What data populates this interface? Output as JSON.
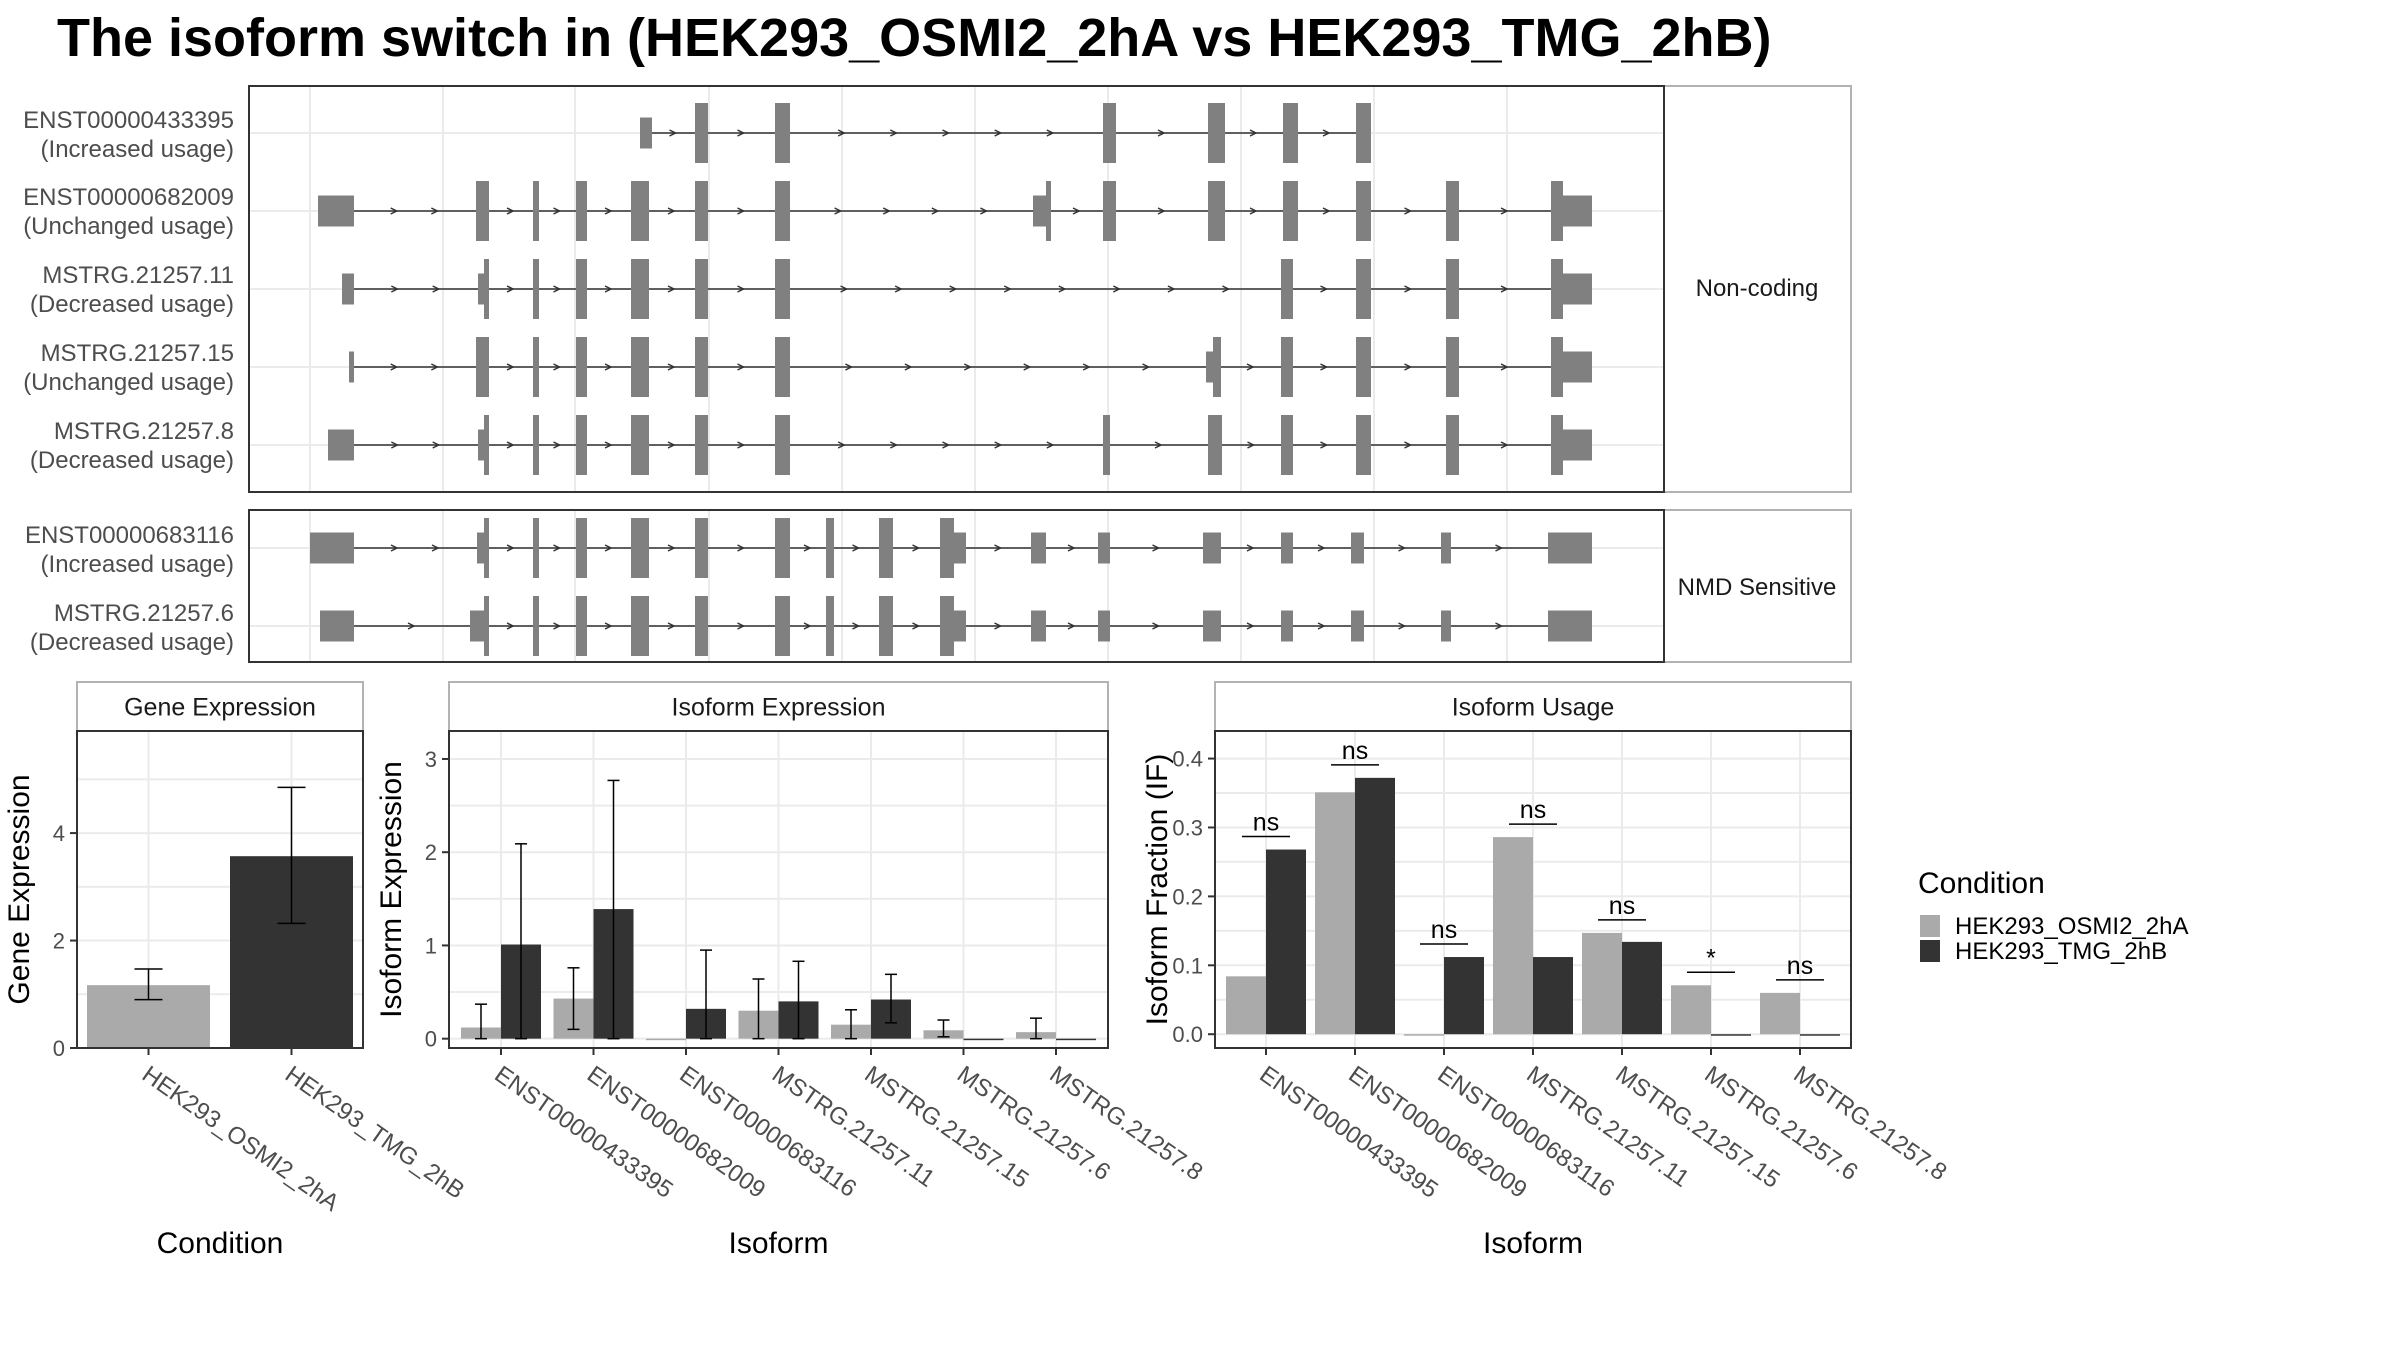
{
  "title": "The isoform switch in  (HEK293_OSMI2_2hA vs HEK293_TMG_2hB)",
  "colors": {
    "cond_a": "#aaaaaa",
    "cond_b": "#333333",
    "exon": "#808080",
    "grid": "#ebebeb",
    "panel_border": "#333333",
    "strip_border": "#b3b3b3"
  },
  "structure": {
    "groups": [
      {
        "name": "Non-coding",
        "transcripts": [
          {
            "id": "ENST00000433395",
            "usage": "(Increased usage)"
          },
          {
            "id": "ENST00000682009",
            "usage": "(Unchanged usage)"
          },
          {
            "id": "MSTRG.21257.11",
            "usage": "(Decreased usage)"
          },
          {
            "id": "MSTRG.21257.15",
            "usage": "(Unchanged usage)"
          },
          {
            "id": "MSTRG.21257.8",
            "usage": "(Decreased usage)"
          }
        ]
      },
      {
        "name": "NMD Sensitive",
        "transcripts": [
          {
            "id": "ENST00000683116",
            "usage": "(Increased usage)"
          },
          {
            "id": "MSTRG.21257.6",
            "usage": "(Decreased usage)"
          }
        ]
      }
    ]
  },
  "legend": {
    "title": "Condition",
    "items": [
      "HEK293_OSMI2_2hA",
      "HEK293_TMG_2hB"
    ]
  },
  "chart_data": [
    {
      "type": "bar",
      "title": "Gene Expression",
      "xlabel": "Condition",
      "ylabel": "Gene Expression",
      "ylim": [
        0,
        5.9
      ],
      "yticks": [
        "0",
        "2",
        "4"
      ],
      "categories": [
        "HEK293_OSMI2_2hA",
        "HEK293_TMG_2hB"
      ],
      "series": [
        {
          "name": "HEK293_OSMI2_2hA",
          "values": [
            1.17,
            null
          ],
          "err_low": [
            0.9,
            null
          ],
          "err_high": [
            1.47,
            null
          ]
        },
        {
          "name": "HEK293_TMG_2hB",
          "values": [
            null,
            3.57
          ],
          "err_low": [
            null,
            2.32
          ],
          "err_high": [
            null,
            4.85
          ]
        }
      ],
      "grid": true
    },
    {
      "type": "bar",
      "title": "Isoform Expression",
      "xlabel": "Isoform",
      "ylabel": "Isoform Expression",
      "ylim": [
        -0.1,
        3.3
      ],
      "yticks": [
        "0",
        "1",
        "2",
        "3"
      ],
      "categories": [
        "ENST00000433395",
        "ENST00000682009",
        "ENST00000683116",
        "MSTRG.21257.11",
        "MSTRG.21257.15",
        "MSTRG.21257.6",
        "MSTRG.21257.8"
      ],
      "series": [
        {
          "name": "HEK293_OSMI2_2hA",
          "values": [
            0.12,
            0.43,
            0.0,
            0.3,
            0.15,
            0.09,
            0.07
          ],
          "err_low": [
            0.0,
            0.1,
            0.0,
            0.0,
            0.0,
            0.02,
            0.0
          ],
          "err_high": [
            0.37,
            0.76,
            0.0,
            0.64,
            0.31,
            0.2,
            0.22
          ]
        },
        {
          "name": "HEK293_TMG_2hB",
          "values": [
            1.01,
            1.39,
            0.32,
            0.4,
            0.42,
            0.0,
            0.0
          ],
          "err_low": [
            0.0,
            0.0,
            0.0,
            0.0,
            0.17,
            0.0,
            0.0
          ],
          "err_high": [
            2.09,
            2.77,
            0.95,
            0.83,
            0.69,
            0.0,
            0.0
          ]
        }
      ],
      "grid": true
    },
    {
      "type": "bar",
      "title": "Isoform Usage",
      "xlabel": "Isoform",
      "ylabel": "Isoform Fraction (IF)",
      "ylim": [
        -0.02,
        0.44
      ],
      "yticks": [
        "0.0",
        "0.1",
        "0.2",
        "0.3",
        "0.4"
      ],
      "categories": [
        "ENST00000433395",
        "ENST00000682009",
        "ENST00000683116",
        "MSTRG.21257.11",
        "MSTRG.21257.15",
        "MSTRG.21257.6",
        "MSTRG.21257.8"
      ],
      "series": [
        {
          "name": "HEK293_OSMI2_2hA",
          "values": [
            0.084,
            0.351,
            0.0,
            0.286,
            0.147,
            0.071,
            0.06
          ]
        },
        {
          "name": "HEK293_TMG_2hB",
          "values": [
            0.268,
            0.372,
            0.112,
            0.112,
            0.134,
            0.0,
            0.0
          ]
        }
      ],
      "annotations": [
        "ns",
        "ns",
        "ns",
        "ns",
        "ns",
        "*",
        "ns"
      ],
      "grid": true
    }
  ]
}
